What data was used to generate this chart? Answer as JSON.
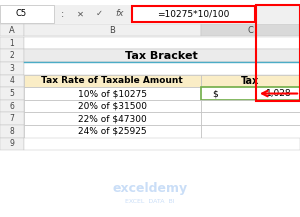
{
  "formula_bar_text": "=10275*10/100",
  "cell_ref": "C5",
  "col_a_label": "A",
  "col_b_label": "B",
  "col_c_label": "C",
  "title": "Tax Bracket",
  "header_col1": "Tax Rate of Taxable Amount",
  "header_col2": "Tax",
  "rows": [
    {
      "col1": "10% of $10275",
      "col2_dollar": "$",
      "col2_value": "1,028"
    },
    {
      "col1": "20% of $31500",
      "col2_dollar": "",
      "col2_value": ""
    },
    {
      "col1": "22% of $47300",
      "col2_dollar": "",
      "col2_value": ""
    },
    {
      "col1": "24% of $25925",
      "col2_dollar": "",
      "col2_value": ""
    }
  ],
  "bg_color": "#FFFFFF",
  "formula_bar_border": "#FF0000",
  "header_bg": "#FAEDC6",
  "header_col2_bg": "#FAEDC6",
  "row5_border_color": "#70AD47",
  "col_c_header_bg": "#D9D9D9",
  "arrow_color": "#FF0000",
  "watermark_color": "#A0C4F1"
}
